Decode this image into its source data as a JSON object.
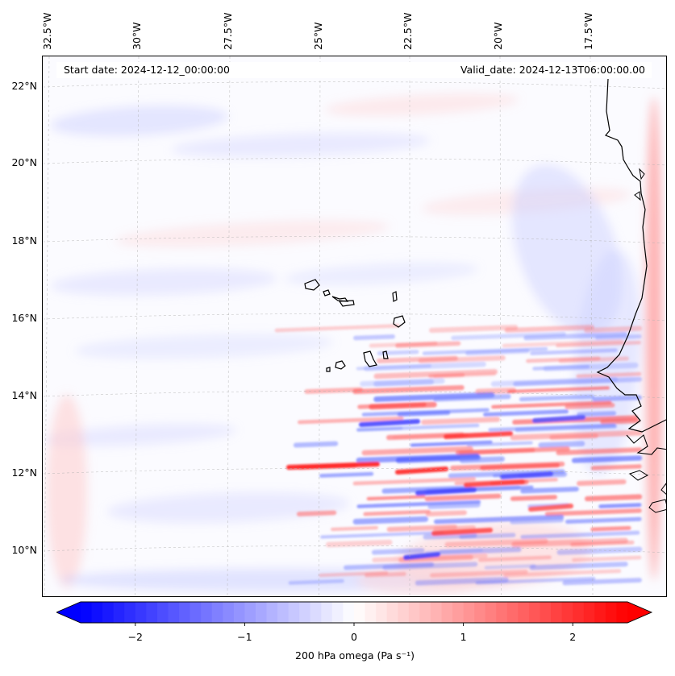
{
  "map": {
    "start_date": "Start date: 2024-12-12_00:00:00",
    "valid_date": "Valid_date: 2024-12-13T06:00:00.00",
    "longitude_labels": [
      "32.5°W",
      "30°W",
      "27.5°W",
      "25°W",
      "22.5°W",
      "20°W",
      "17.5°W"
    ],
    "latitude_labels": [
      "22°N",
      "20°N",
      "18°N",
      "16°N",
      "14°N",
      "12°N",
      "10°N"
    ],
    "extent": {
      "lon_min": -32.6,
      "lon_max": -15.8,
      "lat_min": 8.8,
      "lat_max": 22.8
    },
    "field": "200 hPa omega",
    "islands": [
      "Santo Antão",
      "São Vicente",
      "São Nicolau",
      "Sal",
      "Boa Vista",
      "Maio",
      "Santiago",
      "Fogo",
      "Brava"
    ]
  },
  "colorbar": {
    "label": "200 hPa omega (Pa s⁻¹)",
    "ticks": [
      "−2",
      "−1",
      "0",
      "1",
      "2"
    ],
    "tick_values": [
      -2,
      -1,
      0,
      1,
      2
    ],
    "range": [
      -2.5,
      2.5
    ],
    "colors": {
      "negative": "#0000ff",
      "zero": "#ffffff",
      "positive": "#ff0000"
    }
  }
}
